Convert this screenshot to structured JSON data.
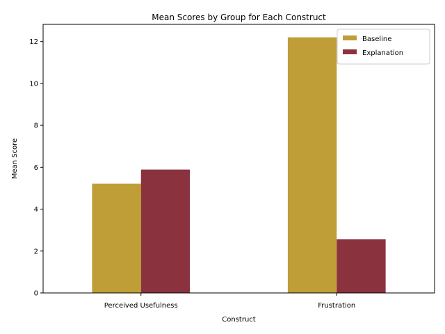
{
  "chart_data": {
    "type": "bar",
    "title": "Mean Scores by Group for Each Construct",
    "xlabel": "Construct",
    "ylabel": "Mean Score",
    "categories": [
      "Perceived Usefulness",
      "Frustration"
    ],
    "series": [
      {
        "name": "Baseline",
        "values": [
          5.22,
          12.2
        ],
        "color": "#c09e37"
      },
      {
        "name": "Explanation",
        "values": [
          5.89,
          2.56
        ],
        "color": "#8b323f"
      }
    ],
    "ylim": [
      0,
      12.82
    ],
    "yticks": [
      0,
      2,
      4,
      6,
      8,
      10,
      12
    ],
    "grid": false,
    "legend_position": "top-right"
  }
}
